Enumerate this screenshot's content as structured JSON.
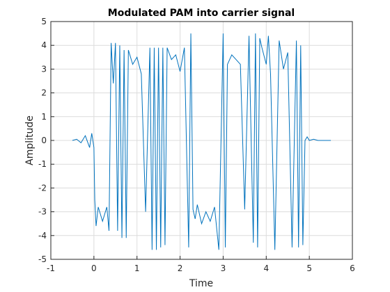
{
  "chart_data": {
    "type": "line",
    "title": "Modulated PAM into carrier signal",
    "xlabel": "Time",
    "ylabel": "Amplitude",
    "xlim": [
      -1,
      6
    ],
    "ylim": [
      -5,
      5
    ],
    "xticks": [
      -1,
      0,
      1,
      2,
      3,
      4,
      5,
      6
    ],
    "yticks": [
      -5,
      -4,
      -3,
      -2,
      -1,
      0,
      1,
      2,
      3,
      4,
      5
    ],
    "xtick_labels": [
      "-1",
      "0",
      "1",
      "2",
      "3",
      "4",
      "5",
      "6"
    ],
    "ytick_labels": [
      "-5",
      "-4",
      "-3",
      "-2",
      "-1",
      "0",
      "1",
      "2",
      "3",
      "4",
      "5"
    ],
    "grid": true,
    "legend": "none",
    "line_color": "#0072BD",
    "series": [
      {
        "x": [
          -0.5,
          -0.4,
          -0.3,
          -0.2,
          -0.1,
          -0.05,
          0.0,
          0.02,
          0.05,
          0.1,
          0.2,
          0.3,
          0.35,
          0.4,
          0.45,
          0.5,
          0.55,
          0.6,
          0.65,
          0.7,
          0.75,
          0.8,
          0.9,
          1.0,
          1.1,
          1.2,
          1.3,
          1.35,
          1.4,
          1.45,
          1.5,
          1.55,
          1.6,
          1.65,
          1.7,
          1.8,
          1.9,
          2.0,
          2.1,
          2.2,
          2.25,
          2.3,
          2.35,
          2.4,
          2.5,
          2.6,
          2.7,
          2.8,
          2.9,
          3.0,
          3.05,
          3.1,
          3.2,
          3.3,
          3.4,
          3.5,
          3.6,
          3.7,
          3.75,
          3.8,
          3.85,
          3.9,
          4.0,
          4.05,
          4.1,
          4.2,
          4.3,
          4.4,
          4.5,
          4.6,
          4.7,
          4.75,
          4.8,
          4.85,
          4.9,
          4.95,
          5.0,
          5.1,
          5.2,
          5.3,
          5.5
        ],
        "y": [
          0.0,
          0.05,
          -0.1,
          0.2,
          -0.3,
          0.3,
          -0.3,
          -2.5,
          -3.6,
          -2.8,
          -3.4,
          -2.8,
          -3.8,
          4.1,
          2.4,
          4.1,
          -3.8,
          4.0,
          -4.1,
          3.8,
          -4.1,
          3.8,
          3.2,
          3.5,
          2.8,
          -3.0,
          3.9,
          -4.6,
          3.9,
          -4.6,
          3.9,
          -4.5,
          3.9,
          -4.4,
          3.9,
          3.4,
          3.6,
          2.9,
          3.9,
          -4.5,
          4.5,
          -2.9,
          -3.3,
          -2.7,
          -3.5,
          -3.0,
          -3.4,
          -2.8,
          -4.6,
          4.5,
          -4.5,
          3.2,
          3.6,
          3.4,
          3.2,
          -2.9,
          4.4,
          -4.3,
          4.5,
          -4.5,
          4.3,
          3.9,
          3.2,
          4.4,
          2.8,
          -4.6,
          4.2,
          3.0,
          3.7,
          -4.5,
          4.2,
          -4.5,
          4.0,
          -4.4,
          0.0,
          0.15,
          0.0,
          0.05,
          0.0,
          0.0,
          0.0
        ]
      }
    ]
  }
}
